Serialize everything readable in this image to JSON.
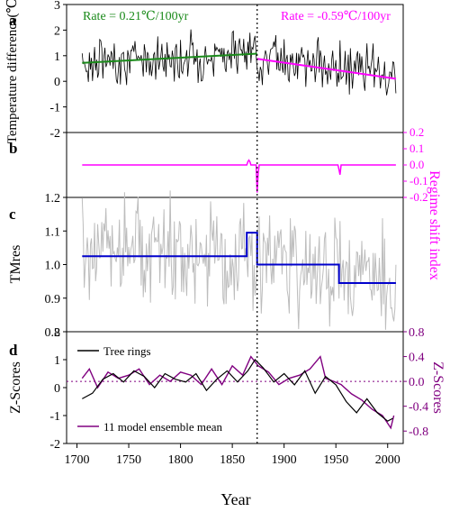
{
  "figure": {
    "x_axis_title": "Year",
    "x_ticks": [
      "1700",
      "1750",
      "1800",
      "1850",
      "1900",
      "1950",
      "2000"
    ],
    "colors": {
      "black": "#000000",
      "green": "#1a8a1a",
      "magenta": "#ff00ff",
      "purple": "#800080",
      "blue": "#0000cc",
      "gray": "#bdbdbd"
    }
  },
  "chart_data": [
    {
      "panel": "a",
      "type": "line",
      "ylabel": "Temperature difference(℃)",
      "ylim": [
        -2,
        3
      ],
      "y_ticks": [
        "-2",
        "-1",
        "0",
        "1",
        "2",
        "3"
      ],
      "xlim": [
        1690,
        2015
      ],
      "annotations": [
        {
          "text": "Rate = 0.21℃/100yr",
          "color": "#1a8a1a"
        },
        {
          "text": "Rate = -0.59℃/100yr",
          "color": "#ff00ff"
        }
      ],
      "series": [
        {
          "kind": "noisy-annual",
          "x_start": 1705,
          "x_end": 2008,
          "mean_start": 0.75,
          "mean_break": 1.08,
          "break_year": 1874,
          "mean_end": 0.1,
          "spread": 0.45,
          "color": "#000000"
        }
      ],
      "trends": [
        {
          "x": [
            1705,
            1874
          ],
          "y": [
            0.72,
            1.08
          ],
          "color": "#1a8a1a"
        },
        {
          "x": [
            1874,
            2008
          ],
          "y": [
            0.88,
            0.1
          ],
          "color": "#ff00ff"
        }
      ],
      "vline": 1874
    },
    {
      "panel": "b",
      "type": "line",
      "ylabel": "Regime shift index",
      "ylabel_color": "#ff00ff",
      "ylim": [
        -0.2,
        0.2
      ],
      "y_ticks": [
        "-0.2",
        "-0.1",
        "0.0",
        "0.1",
        "0.2"
      ],
      "series": [
        {
          "name": "",
          "x": [
            1705,
            1864,
            1865,
            1866,
            1867,
            1868,
            1873,
            1874,
            1875,
            1876,
            1952,
            1953,
            1954,
            1955,
            2008
          ],
          "y": [
            0,
            0,
            0.02,
            0.03,
            0.02,
            0,
            0,
            -0.17,
            -0.05,
            0,
            0,
            -0.03,
            -0.06,
            0,
            0
          ],
          "color": "#ff00ff"
        }
      ]
    },
    {
      "panel": "c",
      "type": "line",
      "ylabel": "TMres",
      "ylim": [
        0.8,
        1.2
      ],
      "y_ticks": [
        "0.8",
        "0.9",
        "1.0",
        "1.1",
        "1.2"
      ],
      "series": [
        {
          "kind": "noisy-annual",
          "x_start": 1705,
          "x_end": 2008,
          "mean_start": 1.03,
          "mean_break": 1.03,
          "break_year": 1874,
          "mean_end": 0.95,
          "spread": 0.08,
          "color": "#bdbdbd"
        }
      ],
      "regimes": [
        {
          "x": [
            1705,
            1864
          ],
          "y": 1.025
        },
        {
          "x": [
            1864,
            1874
          ],
          "y": 1.095
        },
        {
          "x": [
            1874,
            1953
          ],
          "y": 1.0
        },
        {
          "x": [
            1953,
            2008
          ],
          "y": 0.945
        }
      ],
      "regime_color": "#0000cc"
    },
    {
      "panel": "d",
      "type": "line",
      "ylabel": "Z-Scores",
      "ylim": [
        -2,
        2
      ],
      "y_ticks": [
        "-2",
        "-1",
        "0",
        "1",
        "2"
      ],
      "y2label": "Z-Scores",
      "y2lim": [
        -1.0,
        0.8
      ],
      "y2_ticks": [
        "-0.8",
        "-0.4",
        "0.0",
        "0.4",
        "0.8"
      ],
      "legend": [
        {
          "name": "Tree rings",
          "color": "#000000"
        },
        {
          "name": "11 model ensemble mean",
          "color": "#800080"
        }
      ],
      "series": [
        {
          "name": "Tree rings",
          "color": "#000000",
          "x": [
            1705,
            1715,
            1725,
            1735,
            1745,
            1755,
            1765,
            1775,
            1785,
            1795,
            1805,
            1815,
            1825,
            1835,
            1845,
            1855,
            1865,
            1872,
            1880,
            1890,
            1900,
            1910,
            1920,
            1930,
            1940,
            1950,
            1960,
            1970,
            1980,
            1990,
            2000,
            2005
          ],
          "y": [
            -0.4,
            -0.2,
            0.3,
            0.5,
            0.2,
            0.6,
            0.4,
            0.0,
            0.5,
            0.3,
            0.2,
            0.5,
            -0.1,
            0.3,
            0.6,
            0.2,
            0.6,
            1.0,
            0.7,
            0.2,
            0.5,
            0.1,
            0.6,
            -0.2,
            0.4,
            0.1,
            -0.5,
            -0.9,
            -0.4,
            -0.9,
            -1.2,
            -1.1
          ]
        },
        {
          "name": "11 model ensemble mean",
          "color": "#800080",
          "x": [
            1705,
            1712,
            1720,
            1730,
            1740,
            1750,
            1760,
            1770,
            1780,
            1790,
            1800,
            1810,
            1820,
            1830,
            1840,
            1850,
            1860,
            1868,
            1875,
            1885,
            1895,
            1905,
            1915,
            1925,
            1935,
            1940,
            1948,
            1955,
            1965,
            1975,
            1985,
            1995,
            2003,
            2006
          ],
          "y": [
            0.05,
            0.2,
            -0.1,
            0.15,
            0.05,
            0.1,
            0.2,
            -0.05,
            0.1,
            0.0,
            0.15,
            0.1,
            -0.05,
            0.2,
            -0.05,
            0.25,
            0.1,
            0.4,
            0.25,
            0.15,
            -0.05,
            0.05,
            0.1,
            0.2,
            0.4,
            0.05,
            0.0,
            -0.05,
            -0.2,
            -0.3,
            -0.45,
            -0.55,
            -0.75,
            -0.55
          ]
        }
      ],
      "hline_y2": 0.0
    }
  ]
}
